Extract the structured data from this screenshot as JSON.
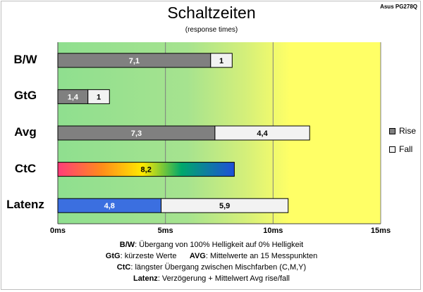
{
  "title": "Schaltzeiten",
  "subtitle": "(response times)",
  "corner_label": "Asus PG278Q",
  "legend": {
    "rise": "Rise",
    "fall": "Fall"
  },
  "colors": {
    "rise": "#808080",
    "fall": "#f2f2f2",
    "bg_green": "#8fdf8f",
    "bg_yellow": "#ffff66",
    "latenz_rise": "#3b6fe0"
  },
  "chart_data": {
    "type": "bar",
    "orientation": "horizontal",
    "stacked": true,
    "categories": [
      "B/W",
      "GtG",
      "Avg",
      "CtC",
      "Latenz"
    ],
    "series": [
      {
        "name": "Rise",
        "values": [
          7.1,
          1.4,
          7.3,
          8.2,
          4.8
        ]
      },
      {
        "name": "Fall",
        "values": [
          1,
          1,
          4.4,
          null,
          5.9
        ]
      }
    ],
    "xlim": [
      0,
      15
    ],
    "xticks": [
      "0ms",
      "5ms",
      "10ms",
      "15ms"
    ],
    "grid": true,
    "legend_position": "right"
  },
  "notes": [
    {
      "key": "B/W",
      "text": ":  Übergang von 100% Helligkeit auf 0% Helligkeit"
    },
    {
      "key": "GtG",
      "text": ": kürzeste  Werte",
      "key2": "AVG",
      "text2": ": Mittelwerte an 15 Messpunkten"
    },
    {
      "key": "CtC",
      "text": ": längster Übergang zwischen Mischfarben (C,M,Y)"
    },
    {
      "key": "Latenz",
      "text": ": Verzögerung  + Mittelwert Avg rise/fall"
    }
  ]
}
